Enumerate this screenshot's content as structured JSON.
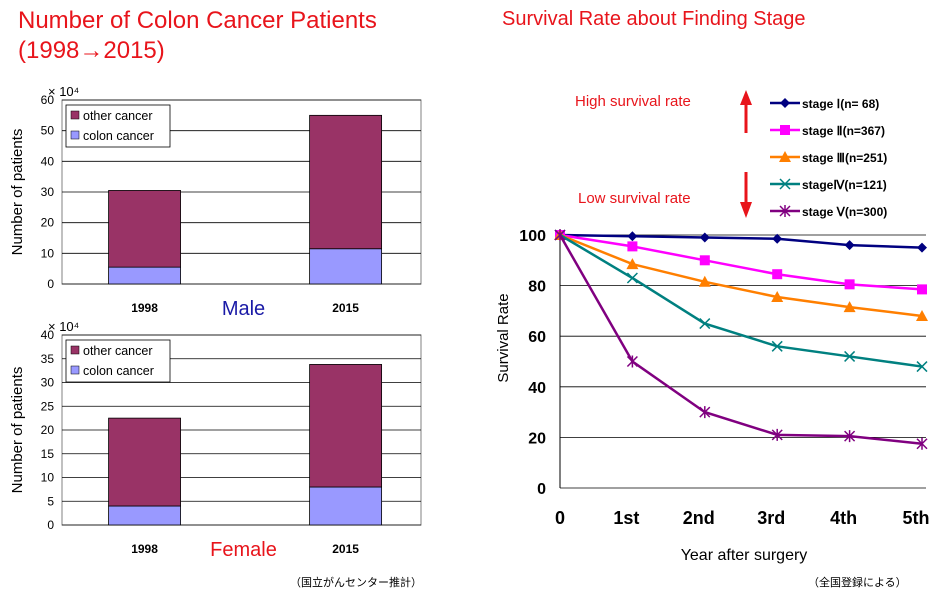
{
  "left_title_line1": "Number of Colon Cancer Patients",
  "left_title_line2": "(1998→2015)",
  "right_title": "Survival Rate about Finding Stage",
  "left_source": "（国立がんセンター推計）",
  "right_source": "（全国登録による）",
  "annotations": {
    "high": "High survival rate",
    "low": "Low survival rate"
  },
  "colors": {
    "other_cancer": "#993366",
    "colon_cancer": "#9999ff",
    "title_red": "#e8141b",
    "male_label": "#1a1aa6",
    "female_label": "#e8141b"
  },
  "chart_data": [
    {
      "type": "bar",
      "stacked": true,
      "gender_label": "Male",
      "multiplier": "× 10⁴",
      "categories": [
        "1998",
        "2015"
      ],
      "series": [
        {
          "name": "colon cancer",
          "values": [
            5.5,
            11.5
          ]
        },
        {
          "name": "other cancer",
          "values": [
            25,
            43.5
          ]
        }
      ],
      "ylabel": "Number of patients",
      "ylim": [
        0,
        60
      ],
      "yticks": [
        0,
        10,
        20,
        30,
        40,
        50,
        60
      ],
      "grid": true,
      "legend": "top-left"
    },
    {
      "type": "bar",
      "stacked": true,
      "gender_label": "Female",
      "multiplier": "× 10⁴",
      "categories": [
        "1998",
        "2015"
      ],
      "series": [
        {
          "name": "colon cancer",
          "values": [
            4,
            8
          ]
        },
        {
          "name": "other cancer",
          "values": [
            18.5,
            25.8
          ]
        }
      ],
      "ylabel": "Number of patients",
      "ylim": [
        0,
        40
      ],
      "yticks": [
        0,
        5,
        10,
        15,
        20,
        25,
        30,
        35,
        40
      ],
      "grid": true,
      "legend": "top-left"
    },
    {
      "type": "line",
      "x": [
        "0",
        "1st",
        "2nd",
        "3rd",
        "4th",
        "5th"
      ],
      "series": [
        {
          "name": "stage Ⅰ(n= 68)",
          "color": "#000080",
          "marker": "diamond",
          "values": [
            100,
            99.5,
            99,
            98.5,
            96,
            95
          ]
        },
        {
          "name": "stage Ⅱ(n=367)",
          "color": "#ff00ff",
          "marker": "square",
          "values": [
            100,
            95.5,
            90,
            84.5,
            80.5,
            78.5
          ]
        },
        {
          "name": "stage Ⅲ(n=251)",
          "color": "#ff7f00",
          "marker": "triangle",
          "values": [
            100,
            88.5,
            81.5,
            75.5,
            71.5,
            68
          ]
        },
        {
          "name": "stageⅣ(n=121)",
          "color": "#008080",
          "marker": "x",
          "values": [
            100,
            83,
            65,
            56,
            52,
            48
          ]
        },
        {
          "name": "stage Ⅴ(n=300)",
          "color": "#800080",
          "marker": "star",
          "values": [
            100,
            50,
            30,
            21,
            20.5,
            17.5
          ]
        }
      ],
      "xlabel": "Year after surgery",
      "ylabel": "Survival Rate",
      "ylim": [
        0,
        100
      ],
      "yticks": [
        0,
        20,
        40,
        60,
        80,
        100
      ],
      "grid": true,
      "legend": "top-right"
    }
  ]
}
